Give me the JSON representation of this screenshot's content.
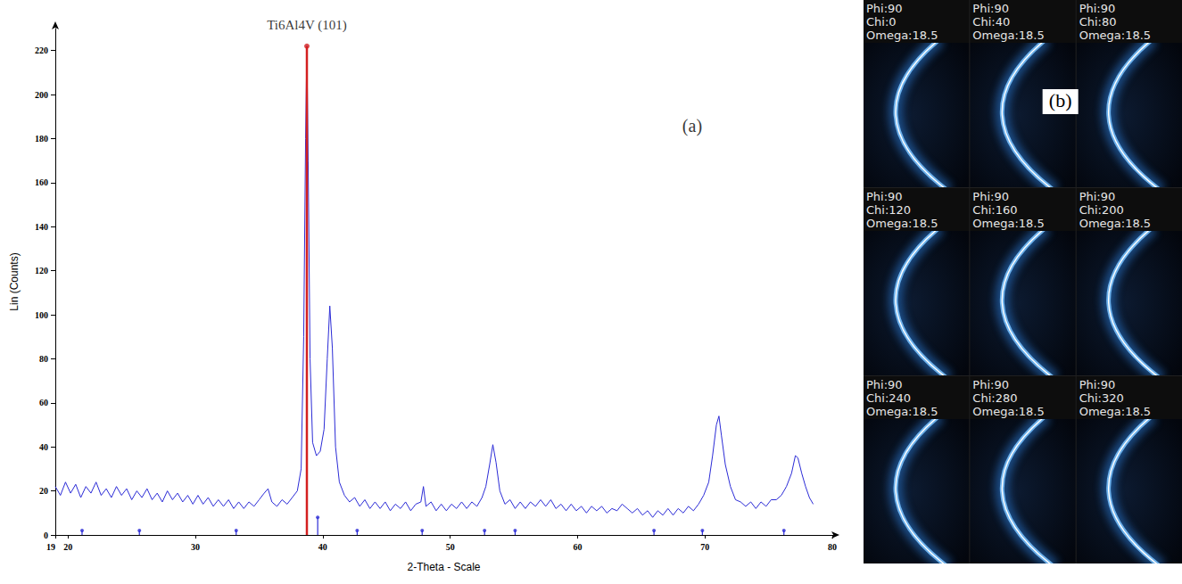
{
  "chart_data": {
    "type": "line",
    "x_axis_label": "2-Theta - Scale",
    "y_axis_label": "Lin (Counts)",
    "xlim": [
      19,
      80
    ],
    "xticks": [
      19,
      20,
      30,
      40,
      50,
      60,
      70,
      80
    ],
    "ylim": [
      0,
      230
    ],
    "yticks": [
      0,
      20,
      40,
      60,
      80,
      100,
      120,
      140,
      160,
      180,
      200,
      220
    ],
    "grid": false,
    "series": [
      {
        "type": "line",
        "color": "#2b2bd6",
        "line_style": "solid",
        "x": [
          19,
          19.4,
          19.8,
          20.2,
          20.6,
          21,
          21.4,
          21.8,
          22.2,
          22.6,
          23,
          23.4,
          23.8,
          24.2,
          24.6,
          25,
          25.4,
          25.8,
          26.2,
          26.6,
          27,
          27.4,
          27.8,
          28.2,
          28.6,
          29,
          29.4,
          29.8,
          30.2,
          30.6,
          31,
          31.4,
          31.8,
          32.2,
          32.6,
          33,
          33.4,
          33.8,
          34.2,
          34.6,
          35,
          35.4,
          35.7,
          36,
          36.4,
          36.8,
          37.2,
          37.6,
          38,
          38.3,
          38.5,
          38.65,
          38.75,
          38.85,
          39,
          39.2,
          39.5,
          39.8,
          40.1,
          40.35,
          40.55,
          40.75,
          41,
          41.3,
          41.7,
          42.1,
          42.5,
          42.9,
          43.3,
          43.7,
          44.1,
          44.5,
          44.9,
          45.3,
          45.7,
          46.1,
          46.5,
          46.9,
          47.3,
          47.7,
          47.9,
          48.1,
          48.5,
          48.9,
          49.3,
          49.7,
          50.1,
          50.5,
          50.9,
          51.3,
          51.7,
          52.1,
          52.5,
          52.8,
          53.1,
          53.35,
          53.6,
          53.9,
          54.3,
          54.7,
          55.1,
          55.5,
          55.9,
          56.3,
          56.7,
          57.1,
          57.5,
          57.9,
          58.3,
          58.7,
          59.1,
          59.5,
          59.9,
          60.3,
          60.7,
          61.1,
          61.5,
          61.9,
          62.3,
          62.7,
          63.1,
          63.5,
          63.9,
          64.3,
          64.7,
          65.1,
          65.5,
          65.9,
          66.3,
          66.7,
          67.1,
          67.5,
          67.9,
          68.3,
          68.7,
          69.1,
          69.5,
          69.9,
          70.3,
          70.6,
          70.9,
          71.1,
          71.3,
          71.6,
          72,
          72.4,
          72.8,
          73.2,
          73.6,
          74,
          74.4,
          74.8,
          75.2,
          75.6,
          76,
          76.4,
          76.8,
          77.1,
          77.3,
          77.6,
          77.9,
          78.2,
          78.5
        ],
        "values": [
          22,
          18,
          24,
          19,
          23,
          17,
          22,
          19,
          24,
          18,
          21,
          17,
          22,
          18,
          21,
          16,
          20,
          17,
          21,
          16,
          19,
          15,
          20,
          16,
          19,
          15,
          18,
          14,
          18,
          14,
          17,
          13,
          16,
          13,
          16,
          12,
          15,
          12,
          15,
          13,
          16,
          19,
          21,
          15,
          13,
          16,
          14,
          17,
          20,
          30,
          90,
          180,
          222,
          170,
          80,
          42,
          36,
          38,
          48,
          80,
          104,
          85,
          40,
          24,
          18,
          15,
          17,
          13,
          16,
          12,
          15,
          12,
          15,
          11,
          14,
          12,
          15,
          11,
          14,
          15,
          22,
          13,
          15,
          11,
          14,
          11,
          14,
          12,
          15,
          12,
          15,
          13,
          17,
          22,
          32,
          41,
          33,
          20,
          14,
          16,
          12,
          15,
          12,
          15,
          13,
          16,
          13,
          16,
          12,
          14,
          11,
          14,
          11,
          13,
          10,
          13,
          11,
          13,
          10,
          12,
          11,
          14,
          12,
          10,
          12,
          9,
          11,
          8,
          11,
          9,
          12,
          9,
          12,
          10,
          13,
          11,
          14,
          18,
          24,
          36,
          50,
          54,
          45,
          32,
          22,
          16,
          15,
          13,
          15,
          12,
          15,
          13,
          16,
          16,
          18,
          22,
          28,
          36,
          35,
          28,
          22,
          17,
          14
        ]
      },
      {
        "type": "stem",
        "color": "#d42020",
        "marker": "circle",
        "x": [
          38.75
        ],
        "values": [
          222
        ]
      },
      {
        "type": "stem",
        "color": "#2b2bd6",
        "marker": "circle",
        "x": [
          21.1,
          25.6,
          33.2,
          39.6,
          42.7,
          47.8,
          52.7,
          55.1,
          66.0,
          69.8,
          76.2
        ],
        "values": [
          2,
          2,
          2,
          8,
          2,
          2,
          2,
          2,
          2,
          2,
          2
        ]
      }
    ],
    "annotations": [
      {
        "text": "Ti6Al4V (101)",
        "x": 38.75,
        "y": 222
      },
      {
        "text": "(a)",
        "x": 69,
        "y": 180
      }
    ]
  },
  "panel_b": {
    "label": "(b)",
    "tiles": [
      {
        "lines": [
          "Phi:90",
          "Chi:0",
          "Omega:18.5"
        ]
      },
      {
        "lines": [
          "Phi:90",
          "Chi:40",
          "Omega:18.5"
        ]
      },
      {
        "lines": [
          "Phi:90",
          "Chi:80",
          "Omega:18.5"
        ]
      },
      {
        "lines": [
          "Phi:90",
          "Chi:120",
          "Omega:18.5"
        ]
      },
      {
        "lines": [
          "Phi:90",
          "Chi:160",
          "Omega:18.5"
        ]
      },
      {
        "lines": [
          "Phi:90",
          "Chi:200",
          "Omega:18.5"
        ]
      },
      {
        "lines": [
          "Phi:90",
          "Chi:240",
          "Omega:18.5"
        ]
      },
      {
        "lines": [
          "Phi:90",
          "Chi:280",
          "Omega:18.5"
        ]
      },
      {
        "lines": [
          "Phi:90",
          "Chi:320",
          "Omega:18.5"
        ]
      }
    ]
  }
}
